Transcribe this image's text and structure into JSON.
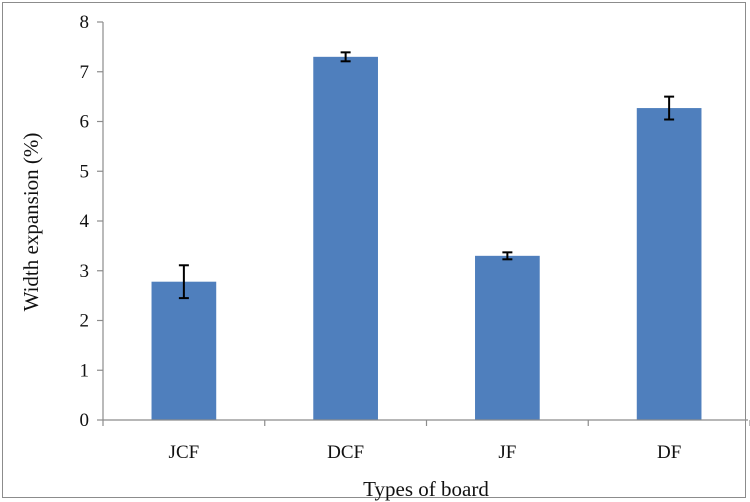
{
  "chart_data": {
    "type": "bar",
    "title": "",
    "xlabel": "Types of board",
    "ylabel": "Width expansion (%)",
    "categories": [
      "JCF",
      "DCF",
      "JF",
      "DF"
    ],
    "values": [
      2.78,
      7.3,
      3.3,
      6.27
    ],
    "error": [
      0.33,
      0.09,
      0.07,
      0.23
    ],
    "ylim": [
      0,
      8
    ],
    "yticks": [
      "0",
      "1",
      "2",
      "3",
      "4",
      "5",
      "6",
      "7",
      "8"
    ],
    "grid": false,
    "legend": "none",
    "bar_color": "#4f7fbd"
  }
}
